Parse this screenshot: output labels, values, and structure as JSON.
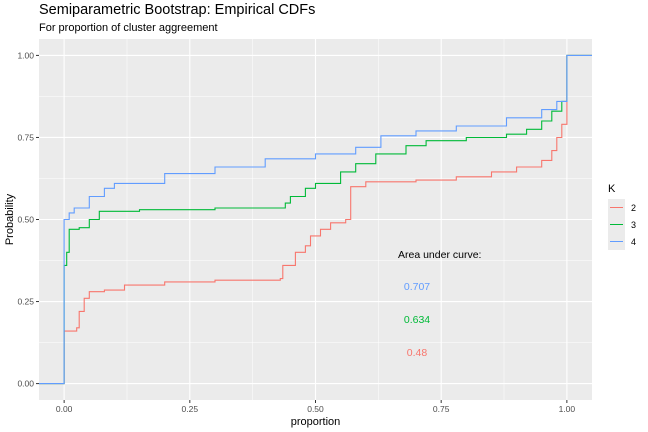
{
  "chart_data": {
    "type": "line",
    "title": "Semiparametric Bootstrap: Empirical CDFs",
    "subtitle": "For proportion of cluster aggreement",
    "xlabel": "proportion",
    "ylabel": "Probability",
    "xlim": [
      -0.05,
      1.05
    ],
    "ylim": [
      -0.05,
      1.05
    ],
    "xticks": [
      "0.00",
      "0.25",
      "0.50",
      "0.75",
      "1.00"
    ],
    "yticks": [
      "0.00",
      "0.25",
      "0.50",
      "0.75",
      "1.00"
    ],
    "grid": true,
    "legend": {
      "title": "K",
      "position": "right"
    },
    "series": [
      {
        "name": "2",
        "color": "#F8766D",
        "auc": "0.48",
        "points": [
          [
            -0.05,
            0
          ],
          [
            0,
            0
          ],
          [
            0,
            0.16
          ],
          [
            0.025,
            0.17
          ],
          [
            0.03,
            0.22
          ],
          [
            0.04,
            0.26
          ],
          [
            0.05,
            0.28
          ],
          [
            0.08,
            0.285
          ],
          [
            0.12,
            0.3
          ],
          [
            0.2,
            0.31
          ],
          [
            0.3,
            0.315
          ],
          [
            0.43,
            0.32
          ],
          [
            0.435,
            0.36
          ],
          [
            0.46,
            0.4
          ],
          [
            0.48,
            0.42
          ],
          [
            0.49,
            0.45
          ],
          [
            0.51,
            0.47
          ],
          [
            0.53,
            0.49
          ],
          [
            0.56,
            0.5
          ],
          [
            0.57,
            0.6
          ],
          [
            0.6,
            0.615
          ],
          [
            0.7,
            0.62
          ],
          [
            0.78,
            0.63
          ],
          [
            0.85,
            0.645
          ],
          [
            0.9,
            0.66
          ],
          [
            0.95,
            0.68
          ],
          [
            0.97,
            0.71
          ],
          [
            0.98,
            0.75
          ],
          [
            0.99,
            0.79
          ],
          [
            1.0,
            0.84
          ],
          [
            1.0,
            1.0
          ],
          [
            1.05,
            1.0
          ]
        ]
      },
      {
        "name": "3",
        "color": "#00BA38",
        "auc": "0.634",
        "points": [
          [
            -0.05,
            0
          ],
          [
            0,
            0
          ],
          [
            0,
            0.36
          ],
          [
            0.005,
            0.4
          ],
          [
            0.01,
            0.47
          ],
          [
            0.03,
            0.475
          ],
          [
            0.05,
            0.5
          ],
          [
            0.07,
            0.525
          ],
          [
            0.15,
            0.53
          ],
          [
            0.3,
            0.535
          ],
          [
            0.44,
            0.55
          ],
          [
            0.45,
            0.57
          ],
          [
            0.48,
            0.595
          ],
          [
            0.5,
            0.61
          ],
          [
            0.55,
            0.645
          ],
          [
            0.58,
            0.67
          ],
          [
            0.62,
            0.7
          ],
          [
            0.68,
            0.725
          ],
          [
            0.72,
            0.74
          ],
          [
            0.8,
            0.75
          ],
          [
            0.88,
            0.76
          ],
          [
            0.92,
            0.775
          ],
          [
            0.95,
            0.8
          ],
          [
            0.97,
            0.83
          ],
          [
            0.99,
            0.86
          ],
          [
            1.0,
            0.88
          ],
          [
            1.0,
            1.0
          ],
          [
            1.05,
            1.0
          ]
        ]
      },
      {
        "name": "4",
        "color": "#619CFF",
        "auc": "0.707",
        "points": [
          [
            -0.05,
            0
          ],
          [
            0,
            0
          ],
          [
            0,
            0.5
          ],
          [
            0.01,
            0.52
          ],
          [
            0.02,
            0.535
          ],
          [
            0.05,
            0.57
          ],
          [
            0.08,
            0.595
          ],
          [
            0.1,
            0.61
          ],
          [
            0.2,
            0.64
          ],
          [
            0.3,
            0.66
          ],
          [
            0.4,
            0.685
          ],
          [
            0.5,
            0.7
          ],
          [
            0.58,
            0.72
          ],
          [
            0.63,
            0.755
          ],
          [
            0.7,
            0.77
          ],
          [
            0.78,
            0.785
          ],
          [
            0.88,
            0.81
          ],
          [
            0.95,
            0.835
          ],
          [
            0.98,
            0.86
          ],
          [
            1.0,
            0.89
          ],
          [
            1.0,
            1.0
          ],
          [
            1.05,
            1.0
          ]
        ]
      }
    ],
    "annotation": {
      "label": "Area under curve:"
    }
  }
}
